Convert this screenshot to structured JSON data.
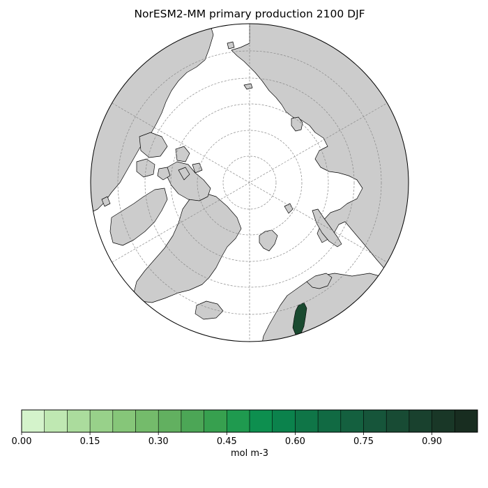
{
  "title": "NorESM2-MM primary production 2100 DJF",
  "map": {
    "projection": "north-polar-stereographic",
    "land_color": "#cccccc",
    "ocean_color": "#ffffff",
    "gridline_color": "#888888"
  },
  "colorbar": {
    "label": "mol m-3",
    "min": 0.0,
    "max": 1.0,
    "step": 0.05,
    "ticks": [
      "0.00",
      "0.15",
      "0.30",
      "0.45",
      "0.60",
      "0.75",
      "0.90"
    ],
    "colors": [
      "#d4f3cb",
      "#bfe8b2",
      "#abdc9d",
      "#98d18a",
      "#86c679",
      "#74bb6b",
      "#62b060",
      "#4ca656",
      "#37a04f",
      "#1f9a4f",
      "#0d8f4f",
      "#0b824c",
      "#0f7547",
      "#116a43",
      "#14603f",
      "#16553a",
      "#184b34",
      "#19412e",
      "#193727",
      "#182d20"
    ]
  },
  "chart_data": {
    "type": "heatmap",
    "title": "NorESM2-MM primary production 2100 DJF",
    "variable": "primary production",
    "model": "NorESM2-MM",
    "year": "2100",
    "season": "DJF",
    "units": "mol m-3",
    "colorbar_range": [
      0.0,
      1.0
    ],
    "colorbar_levels": 20,
    "nonzero_region": "Gulf of Bothnia (Baltic Sea), values near upper end of scale (~0.95)"
  }
}
